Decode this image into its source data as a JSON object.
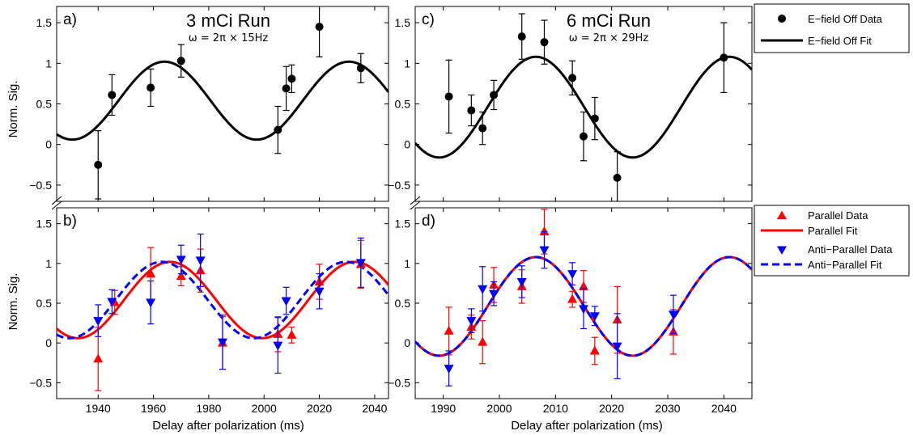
{
  "figure": {
    "shared_xlabel": "Delay after polarization (ms)",
    "ylabel": "Norm. Sig.",
    "colors": {
      "black": "#000000",
      "parallel": "#ff0000",
      "antiparallel": "#0000ff"
    },
    "legend_top": {
      "data_label": "E−field Off Data",
      "fit_label": "E−field Off Fit"
    },
    "legend_bottom": {
      "parallel_data_label": "Parallel Data",
      "parallel_fit_label": "Parallel Fit",
      "antiparallel_data_label": "Anti−Parallel Data",
      "antiparallel_fit_label": "Anti−Parallel Fit"
    }
  },
  "chart_data": [
    {
      "panel": "a)",
      "type": "scatter",
      "title": "3 mCi Run",
      "subtitle": "ω = 2π × 15Hz",
      "xlim": [
        1925,
        2045
      ],
      "ylim": [
        -0.7,
        1.7
      ],
      "xticks": [],
      "yticks": [
        -0.5,
        0,
        0.5,
        1,
        1.5
      ],
      "ytick_labels": [
        "−0.5",
        "0",
        "0.5",
        "1",
        "1.5"
      ],
      "ylabel": "Norm. Sig.",
      "fit": {
        "label": "E−field Off Fit",
        "mean": 0.54,
        "amp": 0.48,
        "freq_hz": 15,
        "peak_ms": 1964
      },
      "series": [
        {
          "name": "E−field Off Data",
          "marker": "circle",
          "color": "#000000",
          "x": [
            1940,
            1945,
            1959,
            1970,
            2005,
            2008,
            2010,
            2020,
            2035
          ],
          "y": [
            -0.25,
            0.61,
            0.7,
            1.03,
            0.18,
            0.69,
            0.81,
            1.45,
            0.94
          ],
          "err": [
            0.42,
            0.25,
            0.23,
            0.2,
            0.29,
            0.27,
            0.17,
            0.37,
            0.18
          ]
        }
      ]
    },
    {
      "panel": "b)",
      "type": "scatter",
      "xlim": [
        1925,
        2045
      ],
      "ylim": [
        -0.7,
        1.7
      ],
      "xticks": [
        1940,
        1960,
        1980,
        2000,
        2020,
        2040
      ],
      "xtick_labels": [
        "1940",
        "1960",
        "1980",
        "2000",
        "2020",
        "2040"
      ],
      "yticks": [
        -0.5,
        0,
        0.5,
        1,
        1.5
      ],
      "ytick_labels": [
        "−0.5",
        "0",
        "0.5",
        "1",
        "1.5"
      ],
      "ylabel": "Norm. Sig.",
      "fits": [
        {
          "label": "Parallel Fit",
          "color": "#ff0000",
          "dash": "solid",
          "mean": 0.54,
          "amp": 0.48,
          "freq_hz": 15,
          "peak_ms": 1966
        },
        {
          "label": "Anti−Parallel Fit",
          "color": "#0000ff",
          "dash": "dashed",
          "mean": 0.54,
          "amp": 0.48,
          "freq_hz": 15,
          "peak_ms": 1963
        }
      ],
      "series": [
        {
          "name": "Parallel Data",
          "marker": "triangle-up",
          "color": "#ff0000",
          "x": [
            1940,
            1946,
            1959,
            1970,
            1977,
            1985,
            2005,
            2010,
            2020,
            2035
          ],
          "y": [
            -0.2,
            0.51,
            0.87,
            0.84,
            0.91,
            0.0,
            0.11,
            0.1,
            0.77,
            0.99
          ],
          "err": [
            0.4,
            0.15,
            0.33,
            0.12,
            0.27,
            0.33,
            0.22,
            0.1,
            0.22,
            0.3
          ]
        },
        {
          "name": "Anti−Parallel Data",
          "marker": "triangle-down",
          "color": "#0000ff",
          "x": [
            1940,
            1945,
            1959,
            1970,
            1977,
            1985,
            2005,
            2008,
            2020,
            2035
          ],
          "y": [
            0.28,
            0.52,
            0.51,
            1.05,
            1.04,
            0.01,
            -0.03,
            0.53,
            0.65,
            1.01
          ],
          "err": [
            0.2,
            0.15,
            0.27,
            0.18,
            0.33,
            0.34,
            0.35,
            0.17,
            0.22,
            0.31
          ]
        }
      ]
    },
    {
      "panel": "c)",
      "type": "scatter",
      "title": "6 mCi Run",
      "subtitle": "ω = 2π × 29Hz",
      "xlim": [
        1985,
        2045
      ],
      "ylim": [
        -0.7,
        1.7
      ],
      "xticks": [],
      "yticks": [
        -0.5,
        0,
        0.5,
        1,
        1.5
      ],
      "ytick_labels": [
        "−0.5",
        "0",
        "0.5",
        "1",
        "1.5"
      ],
      "fit": {
        "label": "E−field Off Fit",
        "mean": 0.46,
        "amp": 0.62,
        "freq_hz": 29,
        "peak_ms": 2006.5
      },
      "series": [
        {
          "name": "E−field Off Data",
          "marker": "circle",
          "color": "#000000",
          "x": [
            1991,
            1995,
            1997,
            1999,
            2004,
            2008,
            2013,
            2015,
            2017,
            2021,
            2040
          ],
          "y": [
            0.59,
            0.42,
            0.2,
            0.61,
            1.33,
            1.26,
            0.82,
            0.1,
            0.32,
            -0.41,
            1.07
          ],
          "err": [
            0.45,
            0.19,
            0.2,
            0.18,
            0.28,
            0.27,
            0.21,
            0.3,
            0.26,
            0.32,
            0.43
          ]
        }
      ]
    },
    {
      "panel": "d)",
      "type": "scatter",
      "xlim": [
        1985,
        2045
      ],
      "ylim": [
        -0.7,
        1.7
      ],
      "xticks": [
        1990,
        2000,
        2010,
        2020,
        2030,
        2040
      ],
      "xtick_labels": [
        "1990",
        "2000",
        "2010",
        "2020",
        "2030",
        "2040"
      ],
      "yticks": [
        -0.5,
        0,
        0.5,
        1,
        1.5
      ],
      "ytick_labels": [
        "−0.5",
        "0",
        "0.5",
        "1",
        "1.5"
      ],
      "fits": [
        {
          "label": "Parallel Fit",
          "color": "#ff0000",
          "dash": "solid",
          "mean": 0.46,
          "amp": 0.62,
          "freq_hz": 29,
          "peak_ms": 2006.5
        },
        {
          "label": "Anti−Parallel Fit",
          "color": "#0000ff",
          "dash": "dashed",
          "mean": 0.46,
          "amp": 0.62,
          "freq_hz": 29,
          "peak_ms": 2006.5
        }
      ],
      "series": [
        {
          "name": "Parallel Data",
          "marker": "triangle-up",
          "color": "#ff0000",
          "x": [
            1991,
            1995,
            1997,
            1999,
            2004,
            2008,
            2013,
            2015,
            2017,
            2021,
            2031
          ],
          "y": [
            0.15,
            0.2,
            0.01,
            0.73,
            0.71,
            1.4,
            0.55,
            0.71,
            -0.1,
            0.29,
            0.14
          ],
          "err": [
            0.3,
            0.15,
            0.27,
            0.22,
            0.21,
            0.28,
            0.1,
            0.2,
            0.17,
            0.42,
            0.28
          ]
        },
        {
          "name": "Anti−Parallel Data",
          "marker": "triangle-down",
          "color": "#0000ff",
          "x": [
            1991,
            1995,
            1997,
            1999,
            2004,
            2008,
            2013,
            2015,
            2017,
            2021,
            2031
          ],
          "y": [
            -0.32,
            0.28,
            0.68,
            0.62,
            0.77,
            1.17,
            0.87,
            0.43,
            0.34,
            -0.04,
            0.36
          ],
          "err": [
            0.22,
            0.15,
            0.28,
            0.15,
            0.2,
            0.23,
            0.14,
            0.25,
            0.12,
            0.41,
            0.24
          ]
        }
      ]
    }
  ]
}
